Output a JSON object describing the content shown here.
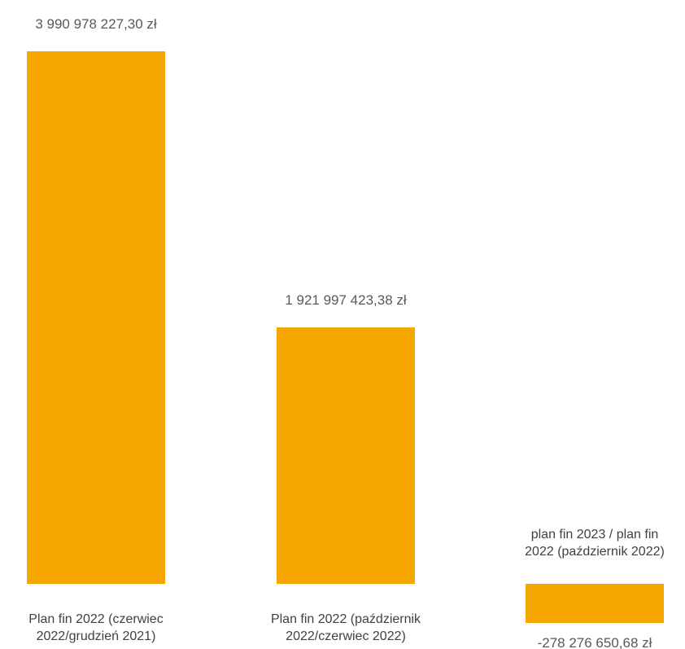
{
  "chart_data": {
    "type": "bar",
    "categories": [
      [
        "Plan fin 2022 (czerwiec",
        "2022/grudzień 2021)"
      ],
      [
        "Plan fin 2022 (październik",
        "2022/czerwiec 2022)"
      ],
      [
        "plan fin 2023 / plan fin",
        "2022 (październik 2022)"
      ]
    ],
    "values": [
      3990978227.3,
      1921997423.38,
      -278276650.68
    ],
    "data_labels": [
      "3 990 978 227,30 zł",
      "1 921 997 423,38 zł",
      "-278 276 650,68 zł"
    ],
    "bar_color": "#F5A700",
    "grid": false,
    "legend": "none"
  }
}
